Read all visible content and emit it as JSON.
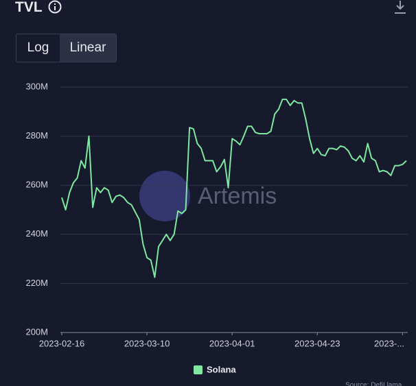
{
  "chart_data": {
    "type": "line",
    "title": "TVL",
    "scale_options": [
      "Log",
      "Linear"
    ],
    "active_scale": "Linear",
    "watermark": "Artemis",
    "source": "Source: DefiLlama",
    "x": [
      "2023-02-16",
      "2023-02-17",
      "2023-02-18",
      "2023-02-19",
      "2023-02-20",
      "2023-02-21",
      "2023-02-22",
      "2023-02-23",
      "2023-02-24",
      "2023-02-25",
      "2023-02-26",
      "2023-02-27",
      "2023-02-28",
      "2023-03-01",
      "2023-03-02",
      "2023-03-03",
      "2023-03-04",
      "2023-03-05",
      "2023-03-06",
      "2023-03-07",
      "2023-03-08",
      "2023-03-09",
      "2023-03-10",
      "2023-03-11",
      "2023-03-12",
      "2023-03-13",
      "2023-03-14",
      "2023-03-15",
      "2023-03-16",
      "2023-03-17",
      "2023-03-18",
      "2023-03-19",
      "2023-03-20",
      "2023-03-21",
      "2023-03-22",
      "2023-03-23",
      "2023-03-24",
      "2023-03-25",
      "2023-03-26",
      "2023-03-27",
      "2023-03-28",
      "2023-03-29",
      "2023-03-30",
      "2023-03-31",
      "2023-04-01",
      "2023-04-02",
      "2023-04-03",
      "2023-04-04",
      "2023-04-05",
      "2023-04-06",
      "2023-04-07",
      "2023-04-08",
      "2023-04-09",
      "2023-04-10",
      "2023-04-11",
      "2023-04-12",
      "2023-04-13",
      "2023-04-14",
      "2023-04-15",
      "2023-04-16",
      "2023-04-17",
      "2023-04-18",
      "2023-04-19",
      "2023-04-20",
      "2023-04-21",
      "2023-04-22",
      "2023-04-23",
      "2023-04-24",
      "2023-04-25",
      "2023-04-26",
      "2023-04-27",
      "2023-04-28",
      "2023-04-29",
      "2023-04-30",
      "2023-05-01",
      "2023-05-02",
      "2023-05-03",
      "2023-05-04",
      "2023-05-05",
      "2023-05-06",
      "2023-05-07",
      "2023-05-08",
      "2023-05-09",
      "2023-05-10",
      "2023-05-11",
      "2023-05-12",
      "2023-05-13",
      "2023-05-14",
      "2023-05-15",
      "2023-05-16"
    ],
    "series": [
      {
        "name": "Solana",
        "color": "#7ee8a0",
        "values": [
          255,
          250,
          257,
          261,
          263,
          270,
          267,
          280,
          251,
          259,
          257,
          259,
          258,
          253,
          255.5,
          256,
          255,
          253,
          252,
          249,
          246,
          236,
          230.5,
          229.5,
          222.5,
          235,
          237.5,
          240,
          237.5,
          240,
          249.5,
          248.5,
          250,
          283.5,
          283,
          277,
          275,
          270,
          270,
          270,
          265.5,
          267.5,
          270.5,
          259,
          279,
          278,
          276.5,
          280,
          284,
          284,
          281.5,
          281,
          281,
          281,
          282,
          289,
          291,
          295,
          295,
          292.5,
          294.5,
          293.5,
          293.5,
          287,
          279,
          273,
          275,
          272.5,
          272,
          275,
          275,
          274.5,
          276,
          275.5,
          274,
          271,
          270,
          272,
          269.5,
          277,
          271,
          270,
          265.5,
          266,
          265.5,
          264,
          268,
          268,
          268.5,
          270
        ]
      }
    ],
    "xlim": [
      "2023-02-16",
      "2023-05-16"
    ],
    "xticks": [
      "2023-02-16",
      "2023-03-10",
      "2023-04-01",
      "2023-04-23",
      {
        "value": "2023-05-15",
        "label": "2023-..."
      }
    ],
    "ylim": [
      200,
      300
    ],
    "yticks": [
      {
        "value": 200,
        "label": "200M"
      },
      {
        "value": 220,
        "label": "220M"
      },
      {
        "value": 240,
        "label": "240M"
      },
      {
        "value": 260,
        "label": "260M"
      },
      {
        "value": 280,
        "label": "280M"
      },
      {
        "value": 300,
        "label": "300M"
      }
    ],
    "grid": true
  }
}
